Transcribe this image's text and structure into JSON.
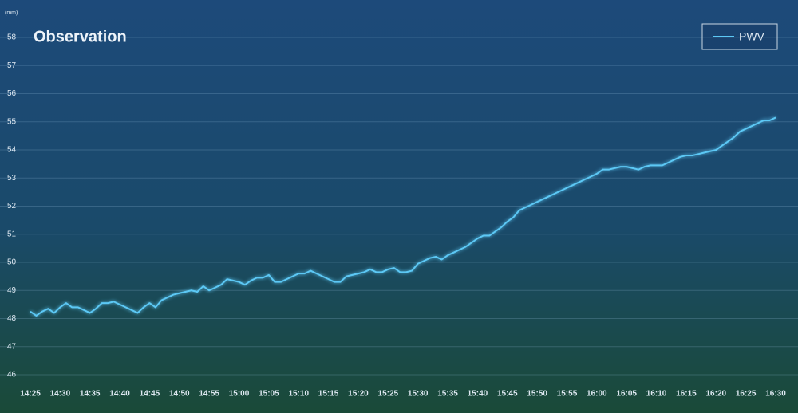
{
  "chart_data": {
    "type": "line",
    "title": "Observation",
    "y_unit": "(mm)",
    "categories": [
      "14:25",
      null,
      null,
      null,
      null,
      "14:30",
      null,
      null,
      null,
      null,
      "14:35",
      null,
      null,
      null,
      null,
      "14:40",
      null,
      null,
      null,
      null,
      "14:45",
      null,
      null,
      null,
      null,
      "14:50",
      null,
      null,
      null,
      null,
      "14:55",
      null,
      null,
      null,
      null,
      "15:00",
      null,
      null,
      null,
      null,
      "15:05",
      null,
      null,
      null,
      null,
      "15:10",
      null,
      null,
      null,
      null,
      "15:15",
      null,
      null,
      null,
      null,
      "15:20",
      null,
      null,
      null,
      null,
      "15:25",
      null,
      null,
      null,
      null,
      "15:30",
      null,
      null,
      null,
      null,
      "15:35",
      null,
      null,
      null,
      null,
      "15:40",
      null,
      null,
      null,
      null,
      "15:45",
      null,
      null,
      null,
      null,
      "15:50",
      null,
      null,
      null,
      null,
      "15:55",
      null,
      null,
      null,
      null,
      "16:00",
      null,
      null,
      null,
      null,
      "16:05",
      null,
      null,
      null,
      null,
      "16:10",
      null,
      null,
      null,
      null,
      "16:15",
      null,
      null,
      null,
      null,
      "16:20",
      null,
      null,
      null,
      null,
      "16:25",
      null,
      null,
      null,
      null,
      "16:30"
    ],
    "series": [
      {
        "name": "PWV",
        "color": "#5cc8f5",
        "values": [
          48.25,
          48.1,
          48.25,
          48.35,
          48.2,
          48.4,
          48.55,
          48.4,
          48.4,
          48.3,
          48.2,
          48.35,
          48.55,
          48.55,
          48.6,
          48.5,
          48.4,
          48.3,
          48.2,
          48.4,
          48.55,
          48.4,
          48.65,
          48.75,
          48.85,
          48.9,
          48.95,
          49.0,
          48.95,
          49.15,
          49.0,
          49.1,
          49.2,
          49.4,
          49.35,
          49.3,
          49.2,
          49.35,
          49.45,
          49.45,
          49.55,
          49.3,
          49.3,
          49.4,
          49.5,
          49.6,
          49.6,
          49.7,
          49.6,
          49.5,
          49.4,
          49.3,
          49.3,
          49.5,
          49.55,
          49.6,
          49.65,
          49.75,
          49.65,
          49.65,
          49.75,
          49.8,
          49.65,
          49.65,
          49.7,
          49.95,
          50.05,
          50.15,
          50.2,
          50.1,
          50.25,
          50.35,
          50.45,
          50.55,
          50.7,
          50.85,
          50.95,
          50.95,
          51.1,
          51.25,
          51.45,
          51.6,
          51.85,
          51.95,
          52.05,
          52.15,
          52.25,
          52.35,
          52.45,
          52.55,
          52.65,
          52.75,
          52.85,
          52.95,
          53.05,
          53.15,
          53.3,
          53.3,
          53.35,
          53.4,
          53.4,
          53.35,
          53.3,
          53.4,
          53.45,
          53.45,
          53.45,
          53.55,
          53.65,
          53.75,
          53.8,
          53.8,
          53.85,
          53.9,
          53.95,
          54.0,
          54.15,
          54.3,
          54.45,
          54.65,
          54.75,
          54.85,
          54.95,
          55.05,
          55.05,
          55.15
        ]
      }
    ],
    "ylim": [
      46,
      58
    ],
    "yticks": [
      46,
      47,
      48,
      49,
      50,
      51,
      52,
      53,
      54,
      55,
      56,
      57,
      58
    ],
    "grid": true,
    "legend": "upper right"
  }
}
